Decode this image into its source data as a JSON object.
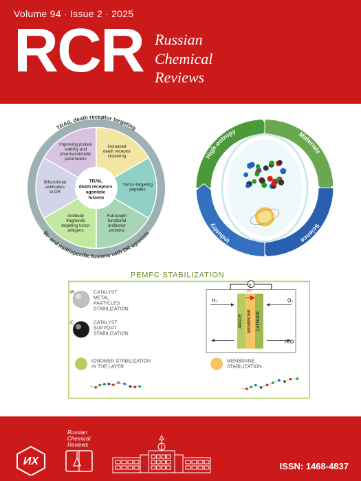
{
  "header": {
    "volume_label": "Volume 94",
    "issue_label": "Issue 2",
    "year": "2025",
    "acronym": "RCR",
    "subtitle_lines": [
      "Russian",
      "Chemical",
      "Reviews"
    ]
  },
  "main": {
    "pie": {
      "outer_label_top": "TRAIL death receptor targeting",
      "outer_label_bottom": "Bi- and multispecific fusions with DR agonists",
      "center_lines": [
        "TRAIL",
        "death receptors",
        "agonistic",
        "fusions"
      ],
      "segments": [
        {
          "color": "#d7c3e0",
          "lines": [
            "Improving protein",
            "stability and",
            "pharmacokinetic",
            "parameters"
          ]
        },
        {
          "color": "#f3e6a3",
          "lines": [
            "Increased",
            "death receptor",
            "clustering"
          ]
        },
        {
          "color": "#8fd1c7",
          "lines": [
            "Tumor-targeting",
            "peptides"
          ]
        },
        {
          "color": "#a8d5b5",
          "lines": [
            "Full-length",
            "functional",
            "antitumor",
            "proteins"
          ]
        },
        {
          "color": "#c3e89f",
          "lines": [
            "Antibody",
            "fragments",
            "targeting tumor",
            "antigens"
          ]
        },
        {
          "color": "#d4d4e8",
          "lines": [
            "Bifunctional",
            "antibodies",
            "to DR"
          ]
        }
      ],
      "ring_color": "#9fb0b5"
    },
    "cycle": {
      "labels": [
        "High-entropy",
        "Materials",
        "Science",
        "Industry"
      ],
      "colors": [
        "#4a9a3a",
        "#6aa84f",
        "#2a5fb0",
        "#3470c0"
      ],
      "oval_bg": "#e6f5f5",
      "atom_colors": [
        "#d02020",
        "#2060d0",
        "#20a020",
        "#333333"
      ]
    },
    "pemfc": {
      "title": "PEMFC STABILIZATION",
      "border_color": "#b5cc5e",
      "items": [
        {
          "icon_color": "#c0c0c0",
          "icon_label": "Pt",
          "lines": [
            "CATALYST",
            "METAL",
            "PARTICLES",
            "STABILIZATION"
          ]
        },
        {
          "icon_color": "#1a1a1a",
          "icon_label": "C",
          "lines": [
            "CATALYST",
            "SUPPORT",
            "STABILIZATION"
          ]
        },
        {
          "icon_color": "#b5cc5e",
          "icon_label": "",
          "lines": [
            "IONOMER STABILIZATION",
            "IN THE LAYER"
          ]
        },
        {
          "icon_color": "#f5c563",
          "icon_label": "",
          "lines": [
            "MEMBRANE",
            "STABILIZATION"
          ]
        }
      ],
      "diagram": {
        "anode_label": "ANODE",
        "membrane_label": "MEMBRANE",
        "cathode_label": "CATHODE",
        "anode_color": "#b5cc5e",
        "membrane_color": "#f5c563",
        "cathode_color": "#a0b850",
        "h_label": "H⁺",
        "e_label": "e⁻",
        "h2_label": "H₂",
        "o2_label": "O₂",
        "h2o_label": "H₂O"
      }
    }
  },
  "footer": {
    "issn_label": "ISSN: 1468-4837",
    "rcr_small_lines": [
      "Russian",
      "Chemical",
      "Reviews"
    ]
  }
}
